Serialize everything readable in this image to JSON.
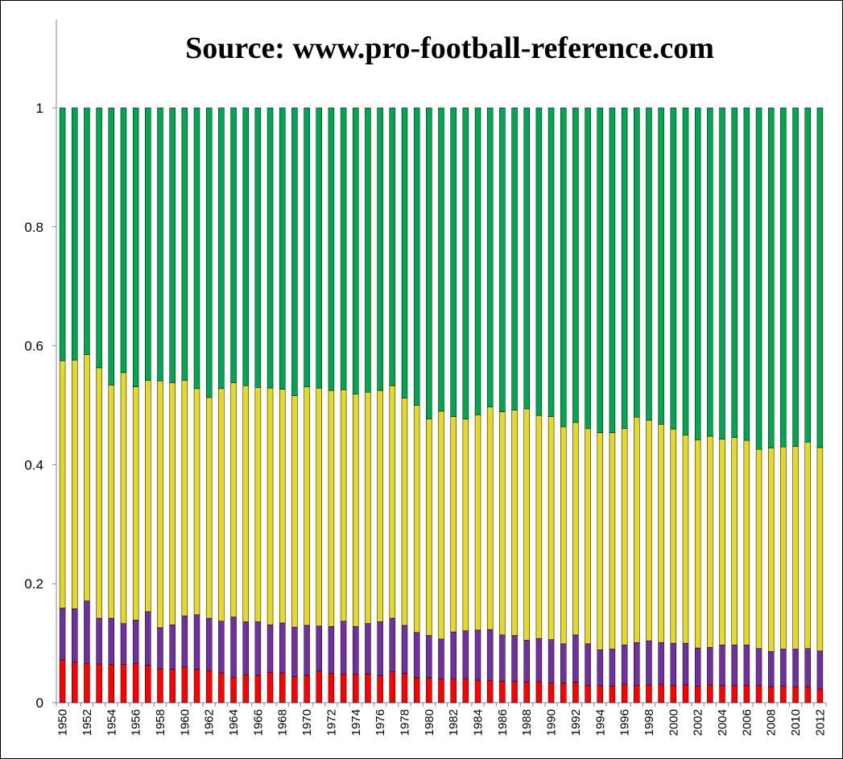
{
  "chart_data": {
    "type": "bar",
    "stacked": true,
    "title": "Source: www.pro-football-reference.com",
    "xlabel": "",
    "ylabel": "",
    "ylim": [
      0,
      1
    ],
    "yticks": [
      "0",
      "0.2",
      "0.4",
      "0.6",
      "0.8",
      "1"
    ],
    "grid": false,
    "legend": "none",
    "categories": [
      1950,
      1951,
      1952,
      1953,
      1954,
      1955,
      1956,
      1957,
      1958,
      1959,
      1960,
      1961,
      1962,
      1963,
      1964,
      1965,
      1966,
      1967,
      1968,
      1969,
      1970,
      1971,
      1972,
      1973,
      1974,
      1975,
      1976,
      1977,
      1978,
      1979,
      1980,
      1981,
      1982,
      1983,
      1984,
      1985,
      1986,
      1987,
      1988,
      1989,
      1990,
      1991,
      1992,
      1993,
      1994,
      1995,
      1996,
      1997,
      1998,
      1999,
      2000,
      2001,
      2002,
      2003,
      2004,
      2005,
      2006,
      2007,
      2008,
      2009,
      2010,
      2011,
      2012
    ],
    "series": [
      {
        "color": "#ff0000",
        "values": [
          0.072,
          0.068,
          0.066,
          0.065,
          0.064,
          0.064,
          0.066,
          0.063,
          0.057,
          0.056,
          0.06,
          0.056,
          0.054,
          0.05,
          0.043,
          0.047,
          0.046,
          0.051,
          0.05,
          0.044,
          0.046,
          0.053,
          0.049,
          0.048,
          0.048,
          0.048,
          0.045,
          0.052,
          0.049,
          0.042,
          0.042,
          0.04,
          0.04,
          0.04,
          0.038,
          0.037,
          0.036,
          0.036,
          0.035,
          0.035,
          0.033,
          0.033,
          0.034,
          0.029,
          0.029,
          0.028,
          0.031,
          0.029,
          0.03,
          0.031,
          0.029,
          0.03,
          0.028,
          0.03,
          0.029,
          0.029,
          0.029,
          0.029,
          0.027,
          0.028,
          0.027,
          0.027,
          0.023
        ]
      },
      {
        "color": "#7030a0",
        "values": [
          0.087,
          0.09,
          0.105,
          0.077,
          0.078,
          0.069,
          0.073,
          0.09,
          0.069,
          0.075,
          0.086,
          0.092,
          0.088,
          0.087,
          0.101,
          0.089,
          0.09,
          0.08,
          0.084,
          0.083,
          0.084,
          0.076,
          0.079,
          0.089,
          0.08,
          0.085,
          0.091,
          0.09,
          0.081,
          0.076,
          0.071,
          0.067,
          0.079,
          0.081,
          0.084,
          0.086,
          0.078,
          0.077,
          0.07,
          0.073,
          0.073,
          0.066,
          0.08,
          0.07,
          0.06,
          0.062,
          0.066,
          0.072,
          0.074,
          0.07,
          0.071,
          0.07,
          0.064,
          0.063,
          0.068,
          0.068,
          0.068,
          0.062,
          0.059,
          0.062,
          0.063,
          0.064,
          0.064
        ]
      },
      {
        "color": "#e3d92a",
        "values": [
          0.416,
          0.418,
          0.414,
          0.421,
          0.392,
          0.422,
          0.392,
          0.389,
          0.415,
          0.407,
          0.396,
          0.38,
          0.371,
          0.391,
          0.394,
          0.397,
          0.394,
          0.398,
          0.393,
          0.389,
          0.401,
          0.4,
          0.397,
          0.389,
          0.391,
          0.389,
          0.389,
          0.391,
          0.382,
          0.382,
          0.364,
          0.383,
          0.362,
          0.356,
          0.362,
          0.374,
          0.375,
          0.379,
          0.389,
          0.375,
          0.375,
          0.365,
          0.357,
          0.362,
          0.365,
          0.364,
          0.364,
          0.379,
          0.371,
          0.367,
          0.36,
          0.35,
          0.35,
          0.355,
          0.346,
          0.349,
          0.344,
          0.335,
          0.342,
          0.34,
          0.341,
          0.347,
          0.342
        ]
      },
      {
        "color": "#00a651",
        "values": [
          0.425,
          0.424,
          0.415,
          0.437,
          0.466,
          0.445,
          0.469,
          0.458,
          0.459,
          0.462,
          0.458,
          0.472,
          0.487,
          0.472,
          0.462,
          0.467,
          0.47,
          0.471,
          0.473,
          0.484,
          0.469,
          0.471,
          0.475,
          0.474,
          0.481,
          0.478,
          0.475,
          0.467,
          0.488,
          0.5,
          0.523,
          0.51,
          0.519,
          0.523,
          0.516,
          0.503,
          0.511,
          0.508,
          0.506,
          0.517,
          0.519,
          0.536,
          0.529,
          0.539,
          0.546,
          0.546,
          0.539,
          0.52,
          0.525,
          0.532,
          0.54,
          0.55,
          0.558,
          0.552,
          0.557,
          0.554,
          0.559,
          0.574,
          0.572,
          0.57,
          0.569,
          0.562,
          0.571
        ]
      }
    ]
  }
}
